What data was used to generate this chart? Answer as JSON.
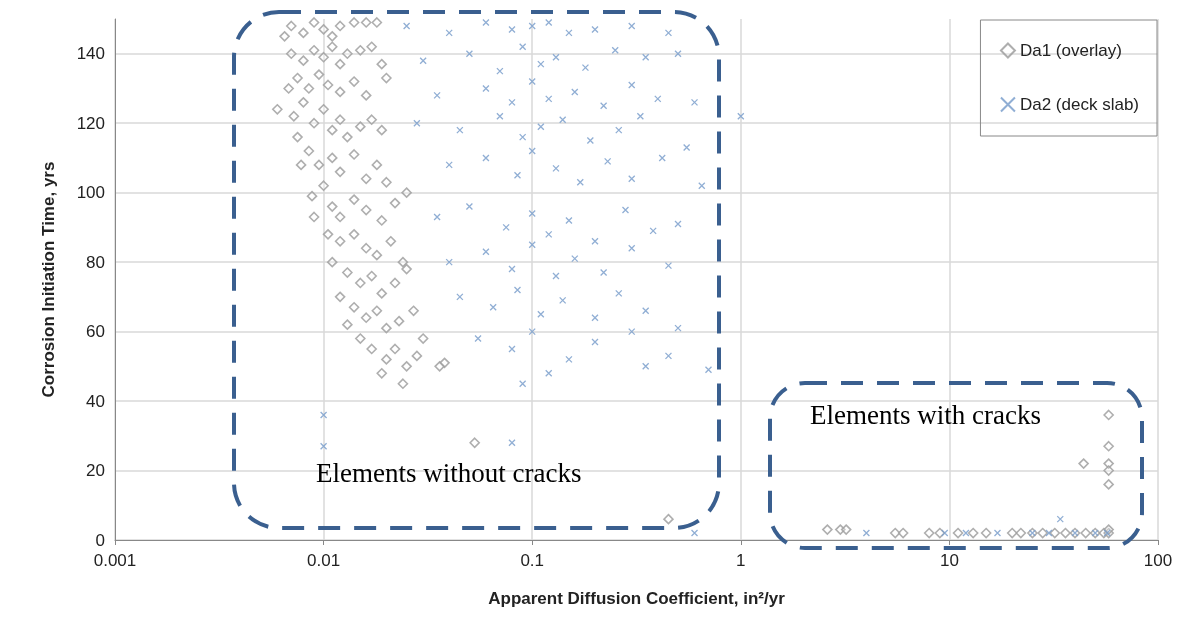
{
  "chart_data": {
    "type": "scatter",
    "xlabel": "Apparent Diffusion Coefficient, in²/yr",
    "ylabel": "Corrosion Initiation Time, yrs",
    "log": "x",
    "xlim": [
      0.001,
      100
    ],
    "xticks": [
      0.001,
      0.01,
      0.1,
      1,
      10,
      100
    ],
    "ylim": [
      0,
      150
    ],
    "yticks": [
      0,
      20,
      40,
      60,
      80,
      100,
      120,
      140
    ],
    "grid": true,
    "legend": "top right",
    "annotations": [
      "Elements without cracks",
      "Elements with cracks"
    ],
    "series": [
      {
        "name": "Da1 (overlay)",
        "color": "#a0a0a0",
        "marker": "diamond",
        "x": [
          0.007,
          0.008,
          0.009,
          0.01,
          0.011,
          0.012,
          0.014,
          0.016,
          0.018,
          0.0065,
          0.007,
          0.008,
          0.009,
          0.01,
          0.011,
          0.012,
          0.013,
          0.015,
          0.017,
          0.02,
          0.0075,
          0.0085,
          0.0095,
          0.0105,
          0.012,
          0.014,
          0.016,
          0.019,
          0.0068,
          0.0072,
          0.008,
          0.009,
          0.01,
          0.011,
          0.012,
          0.013,
          0.015,
          0.017,
          0.019,
          0.0075,
          0.0085,
          0.0095,
          0.011,
          0.012,
          0.014,
          0.016,
          0.018,
          0.02,
          0.0078,
          0.0088,
          0.01,
          0.011,
          0.012,
          0.014,
          0.016,
          0.019,
          0.022,
          0.025,
          0.009,
          0.0105,
          0.012,
          0.014,
          0.016,
          0.018,
          0.021,
          0.024,
          0.011,
          0.013,
          0.015,
          0.017,
          0.019,
          0.022,
          0.025,
          0.012,
          0.014,
          0.016,
          0.018,
          0.02,
          0.023,
          0.027,
          0.013,
          0.015,
          0.017,
          0.02,
          0.022,
          0.025,
          0.019,
          0.024,
          0.028,
          0.03,
          0.006,
          0.038,
          0.036,
          0.053,
          0.45,
          2.6,
          3,
          3.2,
          5.5,
          6,
          8,
          9,
          11,
          13,
          15,
          20,
          22,
          25,
          28,
          32,
          36,
          40,
          45,
          50,
          55,
          58,
          58,
          44,
          58,
          58,
          58,
          58,
          58
        ],
        "values": [
          148,
          146,
          149,
          147,
          145,
          148,
          149,
          149,
          149,
          145,
          140,
          138,
          141,
          139,
          142,
          137,
          140,
          141,
          142,
          133,
          133,
          130,
          134,
          131,
          129,
          132,
          128,
          137,
          130,
          122,
          126,
          120,
          124,
          118,
          121,
          116,
          119,
          121,
          118,
          116,
          112,
          108,
          110,
          106,
          111,
          104,
          108,
          103,
          108,
          99,
          102,
          96,
          93,
          98,
          95,
          92,
          97,
          100,
          93,
          88,
          86,
          88,
          84,
          82,
          86,
          80,
          80,
          77,
          74,
          76,
          71,
          74,
          78,
          70,
          67,
          64,
          66,
          61,
          63,
          66,
          62,
          58,
          55,
          52,
          55,
          50,
          48,
          45,
          53,
          58,
          124,
          51,
          50,
          28,
          6,
          3,
          3,
          3,
          2,
          2,
          2,
          2,
          2,
          2,
          2,
          2,
          2,
          2,
          2,
          2,
          2,
          2,
          2,
          2,
          2,
          2,
          3,
          22,
          36,
          27,
          22,
          20,
          16
        ]
      },
      {
        "name": "Da2 (deck slab)",
        "color": "#7da0cc",
        "marker": "cross",
        "x": [
          0.025,
          0.04,
          0.06,
          0.08,
          0.1,
          0.12,
          0.15,
          0.2,
          0.3,
          0.45,
          0.03,
          0.05,
          0.07,
          0.09,
          0.11,
          0.13,
          0.18,
          0.25,
          0.35,
          0.5,
          0.035,
          0.06,
          0.08,
          0.1,
          0.12,
          0.16,
          0.22,
          0.3,
          0.4,
          0.6,
          0.028,
          0.045,
          0.07,
          0.09,
          0.11,
          0.14,
          0.19,
          0.26,
          0.33,
          0.55,
          0.04,
          0.06,
          0.085,
          0.1,
          0.13,
          0.17,
          0.23,
          0.3,
          0.42,
          0.65,
          0.035,
          0.05,
          0.075,
          0.1,
          0.12,
          0.15,
          0.2,
          0.28,
          0.38,
          0.5,
          0.04,
          0.06,
          0.08,
          0.1,
          0.13,
          0.16,
          0.22,
          0.3,
          0.45,
          0.045,
          0.065,
          0.085,
          0.11,
          0.14,
          0.2,
          0.26,
          0.35,
          0.5,
          0.055,
          0.08,
          0.1,
          0.15,
          0.2,
          0.3,
          0.45,
          0.09,
          0.12,
          0.35,
          0.01,
          0.01,
          0.08,
          1,
          0.7,
          0.6,
          4,
          9.5,
          12,
          17,
          25,
          30,
          34,
          40,
          50,
          57
        ],
        "values": [
          148,
          146,
          149,
          147,
          148,
          149,
          146,
          147,
          148,
          146,
          138,
          140,
          135,
          142,
          137,
          139,
          136,
          141,
          139,
          140,
          128,
          130,
          126,
          132,
          127,
          129,
          125,
          131,
          127,
          126,
          120,
          118,
          122,
          116,
          119,
          121,
          115,
          118,
          122,
          113,
          108,
          110,
          105,
          112,
          107,
          103,
          109,
          104,
          110,
          102,
          93,
          96,
          90,
          94,
          88,
          92,
          86,
          95,
          89,
          91,
          80,
          83,
          78,
          85,
          76,
          81,
          77,
          84,
          79,
          70,
          67,
          72,
          65,
          69,
          64,
          71,
          66,
          61,
          58,
          55,
          60,
          52,
          57,
          60,
          53,
          45,
          48,
          50,
          36,
          27,
          28,
          122,
          49,
          2,
          2,
          2,
          2,
          2,
          2,
          2,
          6,
          2,
          2,
          2
        ]
      }
    ]
  }
}
